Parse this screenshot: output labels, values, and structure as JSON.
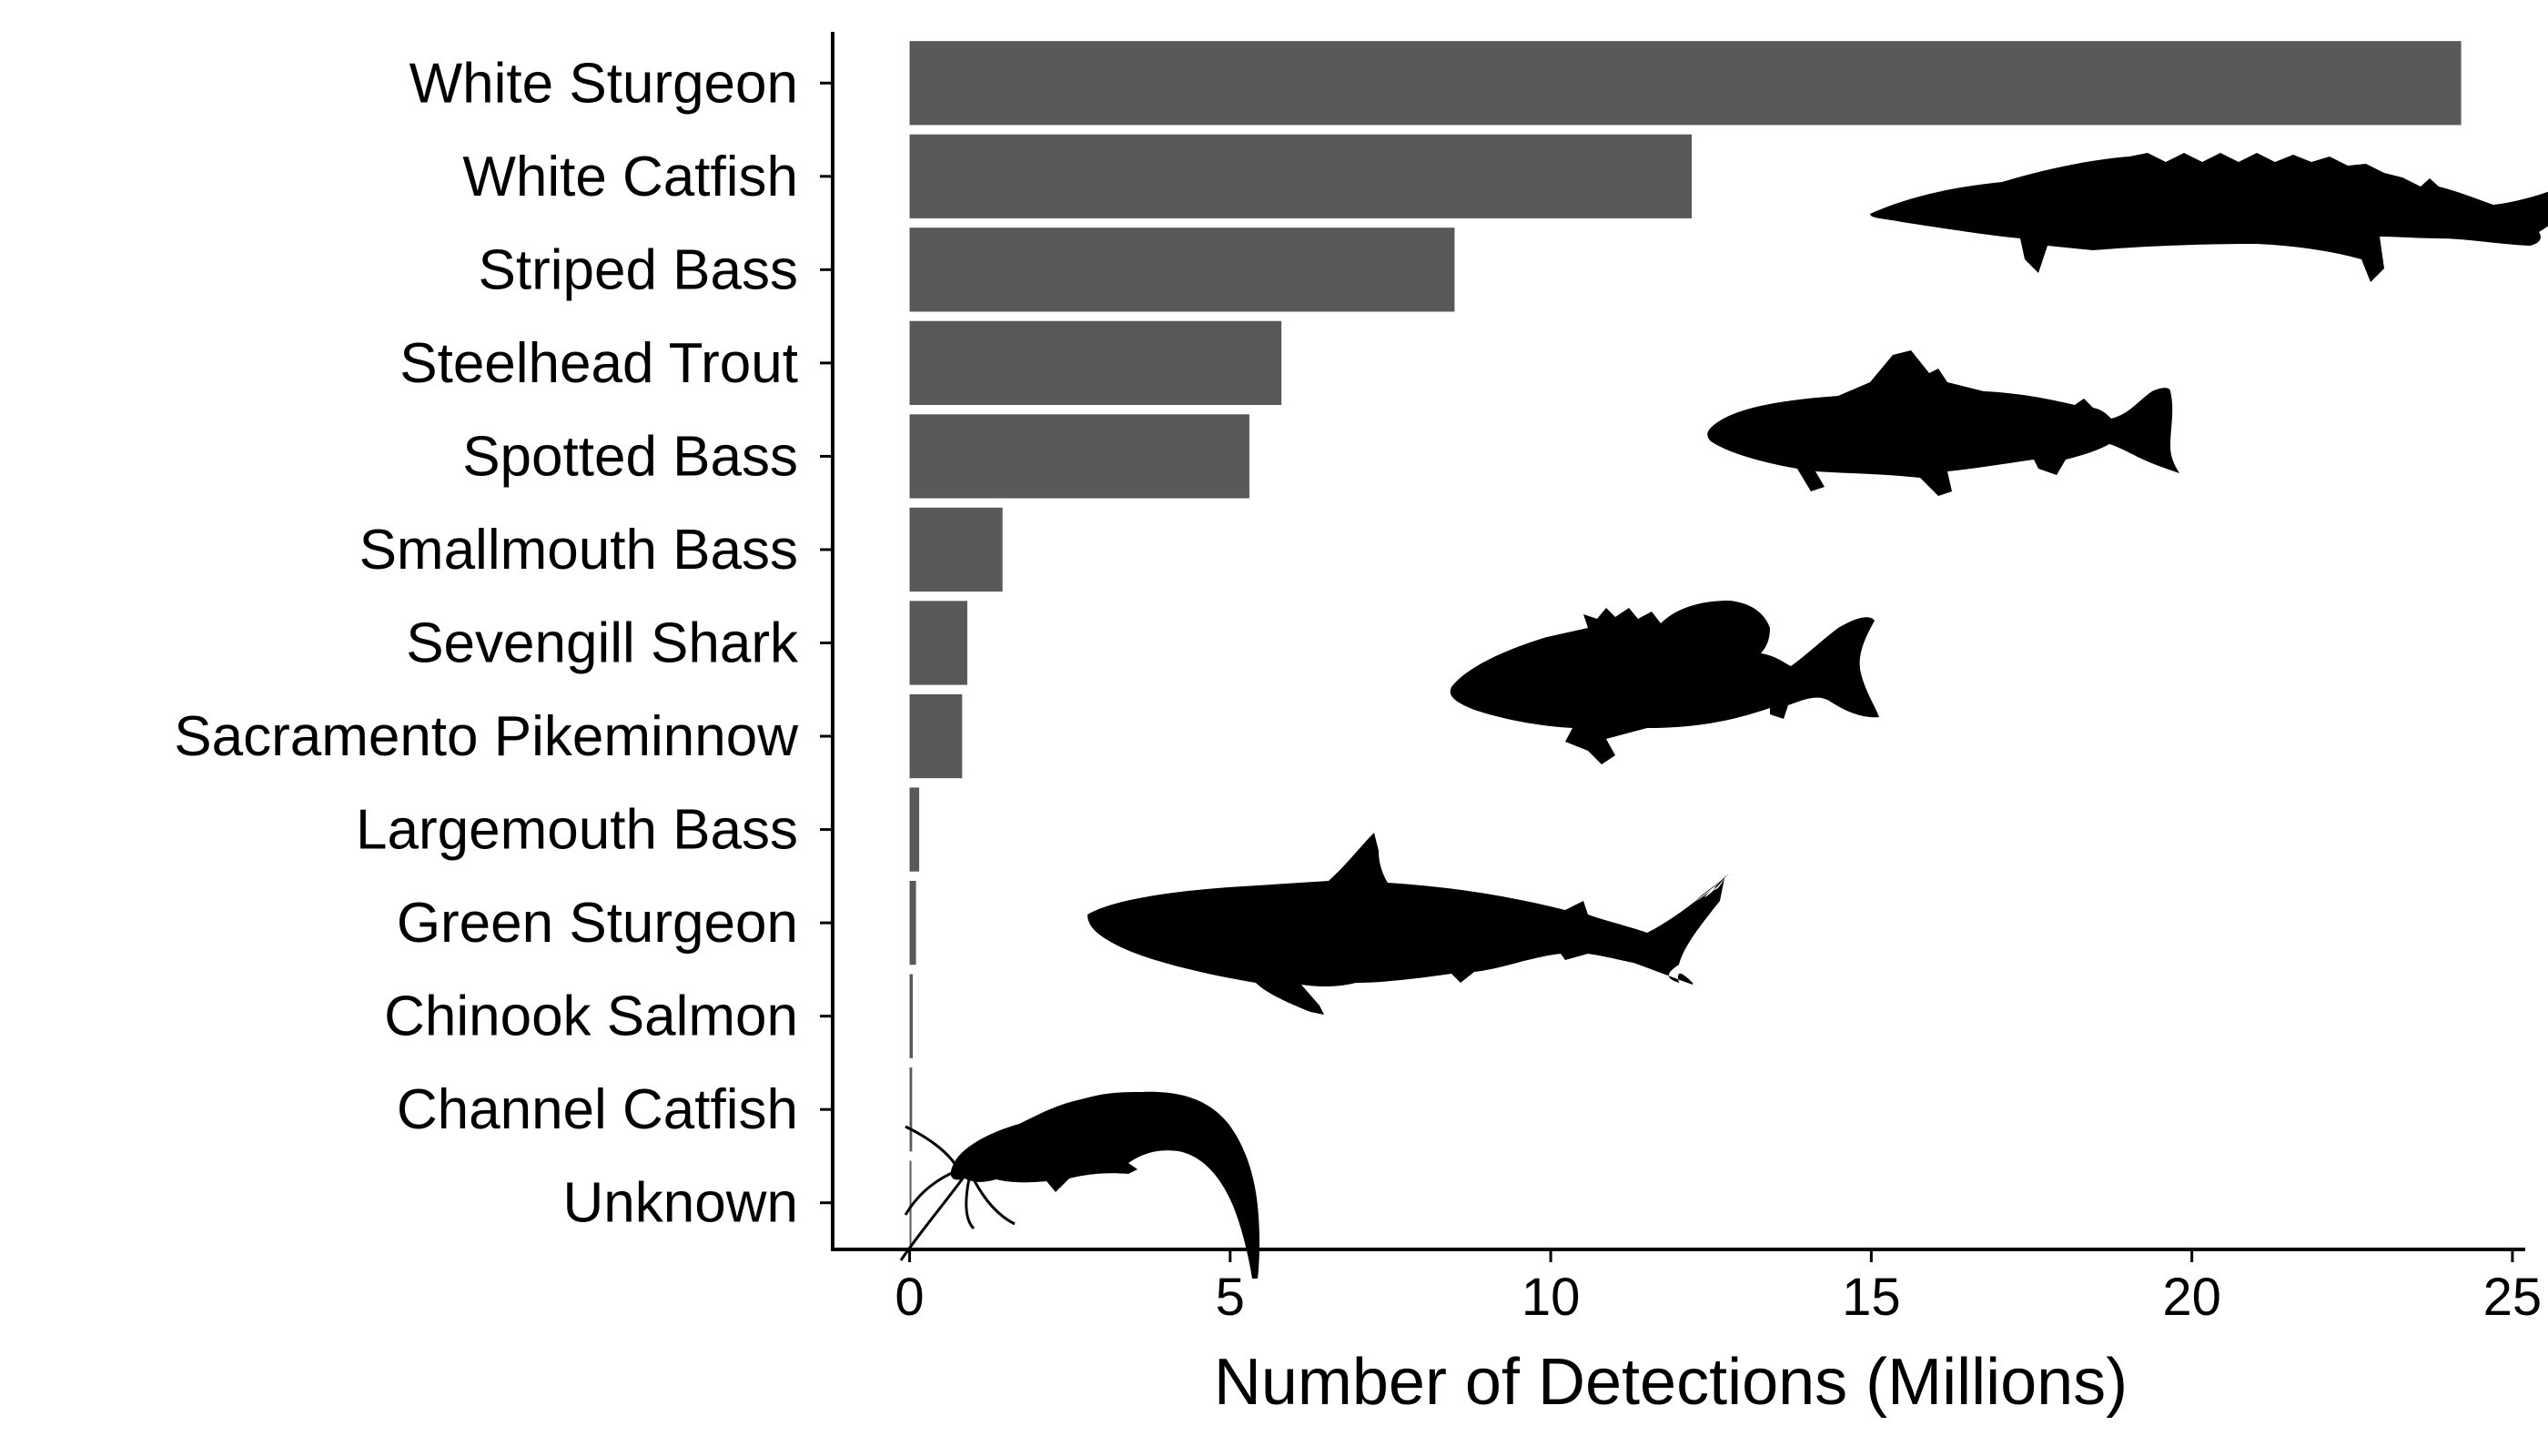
{
  "chart_data": {
    "type": "bar",
    "orientation": "horizontal",
    "categories": [
      "White Sturgeon",
      "White Catfish",
      "Striped Bass",
      "Steelhead Trout",
      "Spotted Bass",
      "Smallmouth Bass",
      "Sevengill Shark",
      "Sacramento Pikeminnow",
      "Largemouth Bass",
      "Green Sturgeon",
      "Chinook Salmon",
      "Channel Catfish",
      "Unknown"
    ],
    "values": [
      24.2,
      12.2,
      8.5,
      5.8,
      5.3,
      1.45,
      0.9,
      0.82,
      0.15,
      0.1,
      0.05,
      0.04,
      0.02
    ],
    "xlabel": "Number of Detections (Millions)",
    "ylabel": "",
    "xlim": [
      -1.2,
      25.2
    ],
    "xticks": [
      0,
      5,
      10,
      15,
      20,
      25
    ],
    "grid": false,
    "legend": "none",
    "bar_color": "#595959",
    "silhouettes": [
      "sturgeon-icon",
      "trout-icon",
      "bass-icon",
      "shark-icon",
      "catfish-icon"
    ]
  }
}
